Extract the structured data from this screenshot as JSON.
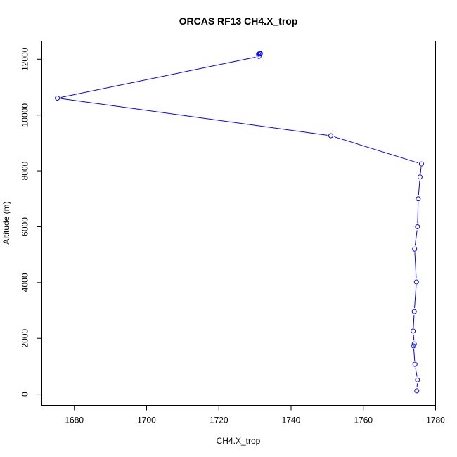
{
  "chart_data": {
    "type": "line",
    "title": "ORCAS RF13 CH4.X_trop",
    "xlabel": "CH4.X_trop",
    "ylabel": "Altitude (m)",
    "xlim": [
      1671,
      1780
    ],
    "ylim": [
      -400,
      12650
    ],
    "xticks": [
      1680,
      1700,
      1720,
      1740,
      1760,
      1780
    ],
    "yticks": [
      0,
      2000,
      4000,
      6000,
      8000,
      10000,
      12000
    ],
    "grid": false,
    "color": "#0000ff",
    "x": [
      1774.8,
      1775.0,
      1774.3,
      1773.9,
      1774.1,
      1773.8,
      1774.1,
      1774.7,
      1774.2,
      1775.0,
      1775.2,
      1775.7,
      1776.1,
      1751.0,
      1675.3,
      1731.1,
      1731.0,
      1731.3,
      1731.5
    ],
    "y": [
      120,
      510,
      1070,
      1730,
      1800,
      2260,
      2960,
      4020,
      5200,
      6000,
      7000,
      7780,
      8250,
      9260,
      10610,
      12100,
      12180,
      12200,
      12210
    ]
  }
}
